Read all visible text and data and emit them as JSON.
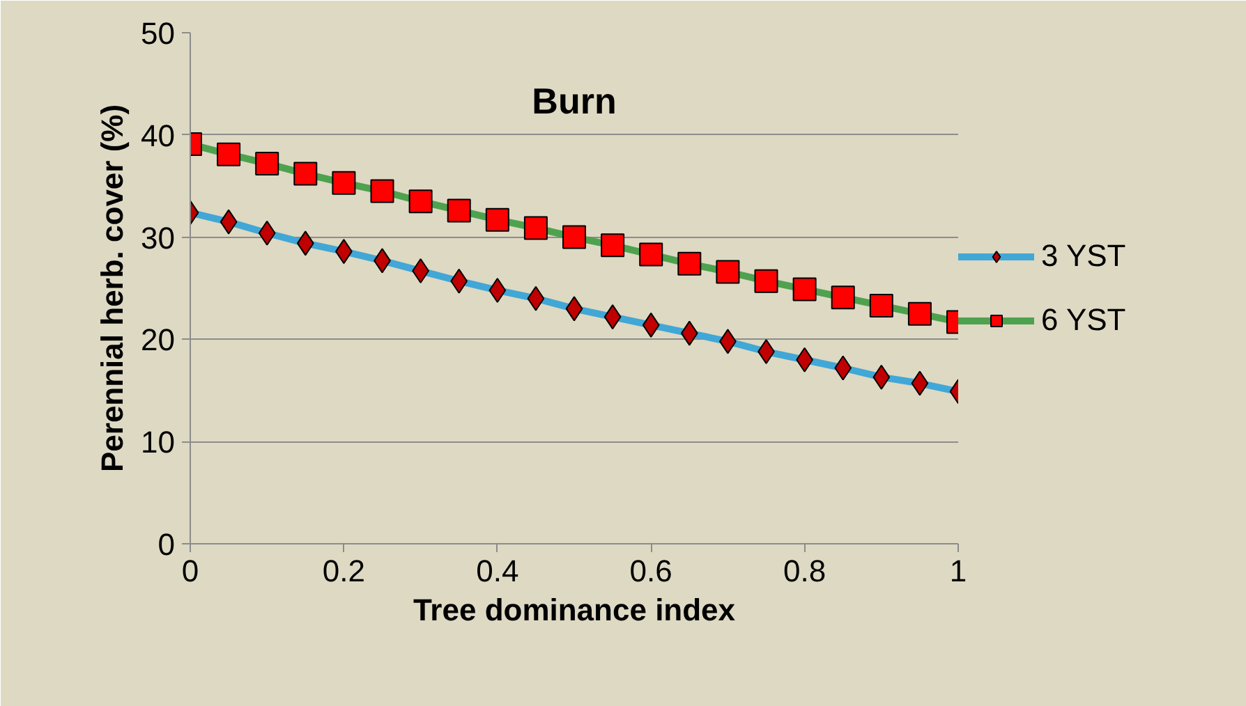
{
  "chart_data": {
    "type": "line",
    "title": "Burn",
    "xlabel": "Tree dominance index",
    "ylabel": "Perennial herb. cover (%)",
    "x": [
      0,
      0.05,
      0.1,
      0.15,
      0.2,
      0.25,
      0.3,
      0.35,
      0.4,
      0.45,
      0.5,
      0.55,
      0.6,
      0.65,
      0.7,
      0.75,
      0.8,
      0.85,
      0.9,
      0.95,
      1
    ],
    "series": [
      {
        "name": "3 YST",
        "color": "#41a7d6",
        "marker": "diamond",
        "colors": [
          "#c00000",
          "#c00000",
          "#c00000",
          "#c00000",
          "#c00000",
          "#c00000",
          "#c00000",
          "#c00000",
          "#c00000",
          "#c00000",
          "#c00000",
          "#c00000",
          "#c00000",
          "#c00000",
          "#c00000",
          "#c00000",
          "#c00000",
          "#c00000",
          "#c00000",
          "#c00000",
          "#c00000"
        ],
        "values": [
          32.4,
          31.5,
          30.4,
          29.4,
          28.6,
          27.7,
          26.7,
          25.7,
          24.8,
          24.0,
          23.0,
          22.2,
          21.4,
          20.6,
          19.8,
          18.8,
          18.0,
          17.2,
          16.3,
          15.7,
          14.9
        ]
      },
      {
        "name": "6 YST",
        "color": "#4ea24e",
        "marker": "square",
        "colors": [
          "#ff0000",
          "#ff0000",
          "#ff0000",
          "#ff0000",
          "#ff0000",
          "#ff0000",
          "#ff0000",
          "#ff0000",
          "#ff0000",
          "#ff0000",
          "#ff0000",
          "#ff0000",
          "#ff0000",
          "#ff0000",
          "#ff0000",
          "#ff0000",
          "#ff0000",
          "#ff0000",
          "#ff0000",
          "#ff0000",
          "#ff0000"
        ],
        "values": [
          39.1,
          38.1,
          37.2,
          36.2,
          35.3,
          34.5,
          33.5,
          32.6,
          31.7,
          30.9,
          30.0,
          29.2,
          28.3,
          27.4,
          26.6,
          25.7,
          24.9,
          24.1,
          23.3,
          22.5,
          21.7
        ]
      }
    ],
    "xlim": [
      0,
      1
    ],
    "ylim": [
      0,
      50
    ],
    "xticks": [
      0,
      0.2,
      0.4,
      0.6,
      0.8,
      1
    ],
    "yticks": [
      0,
      10,
      20,
      30,
      40,
      50
    ],
    "grid": "y",
    "legend": "right"
  }
}
